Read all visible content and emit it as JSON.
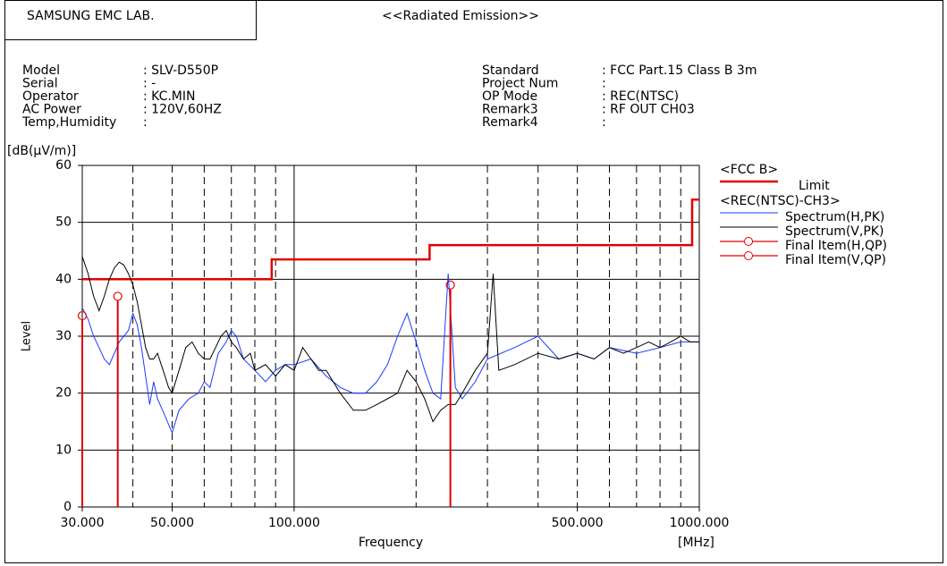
{
  "header": {
    "lab": "SAMSUNG EMC LAB.",
    "title": "<<Radiated Emission>>",
    "left_fields": [
      {
        "label": "Model",
        "value": ": SLV-D550P"
      },
      {
        "label": "Serial",
        "value": ": -"
      },
      {
        "label": "Operator",
        "value": ": KC.MIN"
      },
      {
        "label": "AC Power",
        "value": ": 120V,60HZ"
      },
      {
        "label": "Temp,Humidity",
        "value": ":"
      }
    ],
    "right_fields": [
      {
        "label": "Standard",
        "value": ": FCC Part.15 Class B 3m"
      },
      {
        "label": "Project Num",
        "value": ":"
      },
      {
        "label": "OP Mode",
        "value": ": REC(NTSC)"
      },
      {
        "label": "Remark3",
        "value": ": RF OUT CH03"
      },
      {
        "label": "Remark4",
        "value": ":"
      }
    ]
  },
  "chart_data": {
    "type": "line",
    "xscale": "log",
    "grid": true,
    "ylabel": "Level",
    "yunit": "[dB(μV/m)]",
    "xlabel": "Frequency",
    "xunit": "[MHz]",
    "xlim": [
      30,
      1000
    ],
    "ylim": [
      0,
      60
    ],
    "xticks": [
      {
        "value": 30,
        "label": "30.000"
      },
      {
        "value": 50,
        "label": "50.000"
      },
      {
        "value": 100,
        "label": "100.000"
      },
      {
        "value": 500,
        "label": "500.000"
      },
      {
        "value": 1000,
        "label": "1000.000"
      }
    ],
    "xminor": [
      40,
      50,
      60,
      70,
      80,
      90,
      200,
      300,
      400,
      500,
      600,
      700,
      800,
      900
    ],
    "xmajor": [
      100
    ],
    "yticks": [
      0,
      10,
      20,
      30,
      40,
      50,
      60
    ],
    "legend_groups": [
      "<FCC B>",
      "<REC(NTSC)-CH3>"
    ],
    "series": [
      {
        "name": "Limit",
        "group": 0,
        "color": "#e00000",
        "mode": "lines",
        "width": 2.5,
        "x": [
          30,
          88,
          88,
          216,
          216,
          960,
          960,
          1000
        ],
        "values": [
          40,
          40,
          43.5,
          43.5,
          46,
          46,
          54,
          54
        ]
      },
      {
        "name": "Spectrum(H,PK)",
        "group": 1,
        "color": "#1a3cff",
        "mode": "lines",
        "width": 1,
        "x": [
          30,
          31,
          32,
          33,
          34,
          35,
          36,
          37,
          38,
          39,
          40,
          41,
          42,
          43,
          44,
          45,
          46,
          48,
          50,
          52,
          55,
          58,
          60,
          62,
          65,
          68,
          70,
          72,
          75,
          80,
          85,
          90,
          95,
          100,
          110,
          120,
          130,
          140,
          150,
          160,
          170,
          180,
          190,
          200,
          210,
          220,
          230,
          240,
          250,
          260,
          280,
          300,
          350,
          400,
          450,
          500,
          550,
          600,
          700,
          800,
          900,
          1000
        ],
        "values": [
          35,
          33,
          30,
          28,
          26,
          25,
          27,
          29,
          30,
          31,
          34,
          32,
          28,
          23,
          18,
          22,
          19,
          16,
          13,
          17,
          19,
          20,
          22,
          21,
          27,
          29,
          31,
          30,
          26,
          24,
          22,
          24,
          25,
          25,
          26,
          23,
          21,
          20,
          20,
          22,
          25,
          30,
          34,
          29,
          24,
          20,
          19,
          41,
          21,
          19,
          22,
          26,
          28,
          30,
          26,
          27,
          26,
          28,
          27,
          28,
          29,
          29
        ]
      },
      {
        "name": "Spectrum(V,PK)",
        "group": 1,
        "color": "#000000",
        "mode": "lines",
        "width": 1,
        "x": [
          30,
          31,
          32,
          33,
          34,
          35,
          36,
          37,
          38,
          39,
          40,
          41,
          42,
          43,
          44,
          45,
          46,
          47,
          48,
          49,
          50,
          52,
          54,
          56,
          58,
          60,
          62,
          64,
          66,
          68,
          70,
          72,
          75,
          78,
          80,
          85,
          90,
          95,
          100,
          105,
          110,
          115,
          120,
          130,
          140,
          150,
          160,
          170,
          180,
          190,
          200,
          210,
          220,
          230,
          240,
          250,
          260,
          280,
          300,
          310,
          320,
          350,
          400,
          450,
          500,
          550,
          600,
          650,
          700,
          750,
          800,
          850,
          900,
          950,
          1000
        ],
        "values": [
          44,
          41,
          37,
          34.5,
          37,
          40,
          42,
          43,
          42.5,
          41,
          39,
          36,
          32,
          28,
          26,
          26,
          27,
          25,
          23,
          21,
          20,
          24,
          28,
          29,
          27,
          26,
          26,
          28,
          30,
          31,
          29,
          28,
          26,
          27,
          24,
          25,
          23,
          25,
          24,
          28,
          26,
          24,
          24,
          20,
          17,
          17,
          18,
          19,
          20,
          24,
          22,
          19,
          15,
          17,
          18,
          18,
          20,
          24,
          27,
          41,
          24,
          25,
          27,
          26,
          27,
          26,
          28,
          27,
          28,
          29,
          28,
          29,
          30,
          29,
          29
        ]
      },
      {
        "name": "Final Item(H,QP)",
        "group": 1,
        "color": "#e00000",
        "mode": "markers",
        "x": [
          30,
          243
        ],
        "values": [
          33.6,
          39
        ]
      },
      {
        "name": "Final Item(V,QP)",
        "group": 1,
        "color": "#e00000",
        "mode": "markers",
        "x": [
          36.7
        ],
        "values": [
          37
        ]
      }
    ]
  }
}
